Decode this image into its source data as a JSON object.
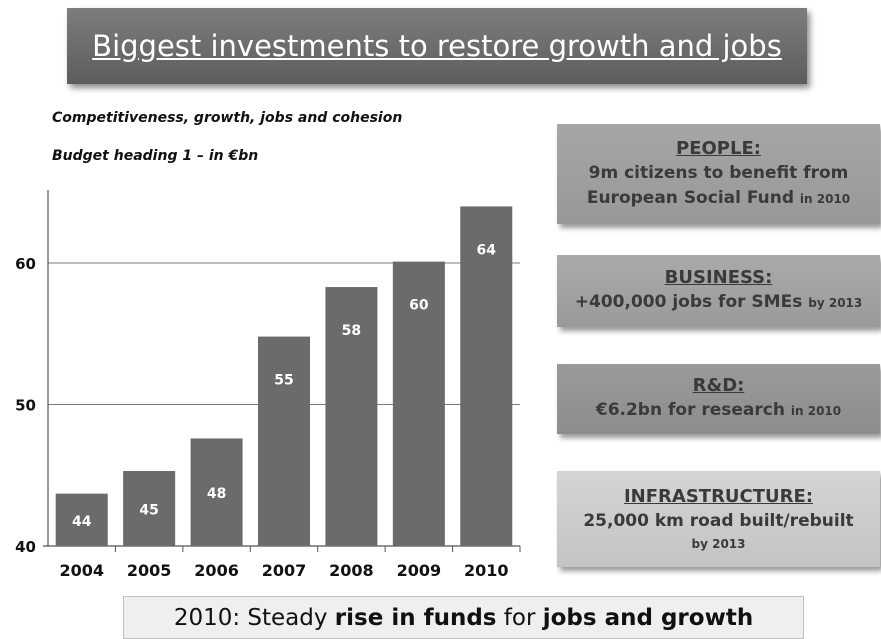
{
  "title": "Biggest investments to restore growth and jobs",
  "subtitle1": "Competitiveness, growth, jobs and cohesion",
  "subtitle2": "Budget heading 1 – in €bn",
  "chart_data": {
    "type": "bar",
    "categories": [
      "2004",
      "2005",
      "2006",
      "2007",
      "2008",
      "2009",
      "2010"
    ],
    "values": [
      44,
      45,
      48,
      55,
      58,
      60,
      64
    ],
    "bar_heights": [
      43.7,
      45.3,
      47.6,
      54.8,
      58.3,
      60.1,
      64.0
    ],
    "yticks": [
      40,
      50,
      60
    ],
    "ylim": [
      40,
      65
    ],
    "grid": true,
    "bar_color": "#6b6b6b",
    "label_color": "#ffffff"
  },
  "boxes": [
    {
      "heading": "PEOPLE:",
      "line1": "9m citizens to benefit from",
      "line2": "European Social Fund",
      "small": "in 2010"
    },
    {
      "heading": "BUSINESS:",
      "line1": "+400,000 jobs for SMEs",
      "small": "by 2013"
    },
    {
      "heading": "R&D:",
      "line1": "€6.2bn for research",
      "small": "in 2010"
    },
    {
      "heading": "INFRASTRUCTURE:",
      "line1": "25,000 km road built/rebuilt",
      "small": "by 2013"
    }
  ],
  "footer": {
    "pre": "2010: Steady ",
    "bold1": "rise in funds",
    "mid": " for ",
    "bold2": "jobs and growth"
  }
}
